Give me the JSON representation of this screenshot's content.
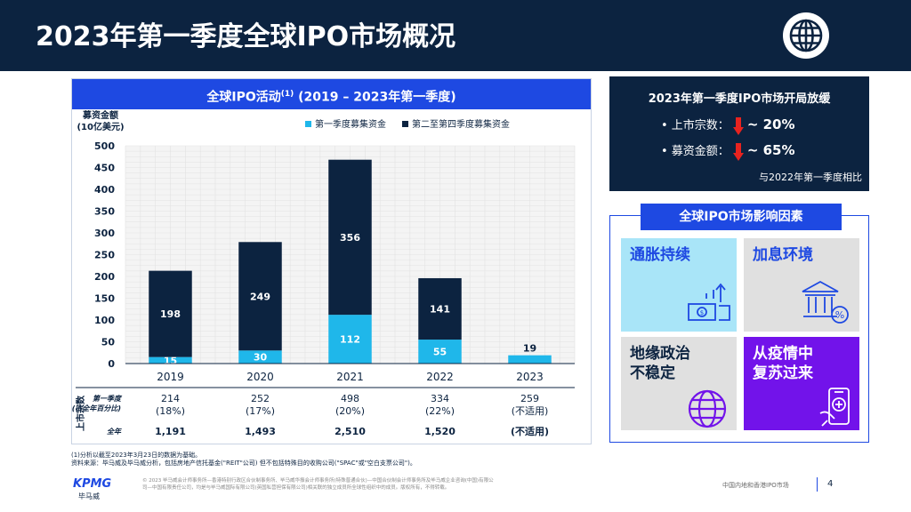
{
  "title": "2023年第一季度全球IPO市场概况",
  "chart_panel": {
    "header_main": "全球IPO活动",
    "header_sup": "(1)",
    "header_tail": " (2019 – 2023年第一季度)"
  },
  "chart_data": {
    "type": "bar",
    "stacked": true,
    "categories": [
      "2019",
      "2020",
      "2021",
      "2022",
      "2023"
    ],
    "series": [
      {
        "name": "第一季度募集资金",
        "color": "#1fb7ea",
        "values": [
          15,
          30,
          112,
          55,
          19
        ]
      },
      {
        "name": "第二至第四季度募集资金",
        "color": "#0c2340",
        "values": [
          198,
          249,
          356,
          141,
          null
        ]
      }
    ],
    "ylabel_line1": "募资金额",
    "ylabel_line2": "(10亿美元)",
    "ylim": [
      0,
      500
    ],
    "yticks": [
      0,
      50,
      100,
      150,
      200,
      250,
      300,
      350,
      400,
      450,
      500
    ],
    "grid": true,
    "legend_position": "top",
    "table": {
      "side_label": "上市宗数",
      "q1_label": "第一季度",
      "q1_sublabel": "(占全年百分比)",
      "q1_counts": [
        "214",
        "252",
        "498",
        "334",
        "259"
      ],
      "q1_percent": [
        "(18%)",
        "(17%)",
        "(20%)",
        "(22%)",
        "(不适用)"
      ],
      "full_label": "全年",
      "full_counts": [
        "1,191",
        "1,493",
        "2,510",
        "1,520",
        "(不适用)"
      ]
    }
  },
  "stats": {
    "title": "2023年第一季度IPO市场开局放缓",
    "row1_label": "• 上市宗数：",
    "row1_value": "~ 20%",
    "row2_label": "• 募资金额：",
    "row2_value": "~ 65%",
    "footer": "与2022年第一季度相比",
    "arrow_color": "#e8231f"
  },
  "factors": {
    "header": "全球IPO市场影响因素",
    "tiles": [
      {
        "label": "通胀持续",
        "icon": "money-growth-icon"
      },
      {
        "label": "加息环境",
        "icon": "bank-percent-icon"
      },
      {
        "label": "地缘政治\n不稳定",
        "icon": "globe-icon"
      },
      {
        "label": "从疫情中\n复苏过来",
        "icon": "medical-phone-icon"
      }
    ]
  },
  "footnote_line1": "(1)分析以截至2023年3月23日的数据为基础。",
  "footnote_line2": "资料来源：毕马威及毕马威分析，包括房地产信托基金(\"REIT\"公司) 但不包括特殊目的收购公司(\"SPAC\"或\"空白支票公司\")。",
  "logo": "KPMG",
  "logo_cn": "毕马威",
  "copyright": "© 2023 毕马威会计师事务所—香港特别行政区合伙制事务所、毕马威华振会计师事务所(特殊普通合伙)—中国合伙制会计师事务所及毕马威企业咨询(中国)有限公司—中国有限责任公司，均是与毕马威国际有限公司(英国私营担保有限公司)相关联的独立成员所全球性组织中的成员。版权所有，不得转载。",
  "footer_right": "中国内地和香港IPO市场",
  "page_number": "4",
  "colors": {
    "navy": "#0c2340",
    "blue": "#1e49e2",
    "cyan": "#1fb7ea",
    "purple": "#7213ea",
    "light_blue": "#a9e5f8",
    "gray": "#e0e0e0"
  }
}
